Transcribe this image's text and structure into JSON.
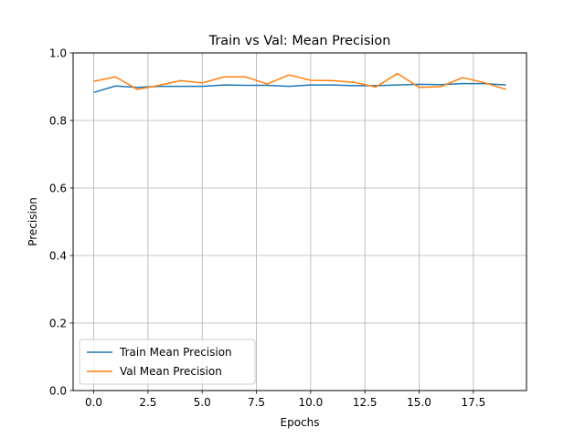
{
  "chart_data": {
    "type": "line",
    "title": "Train vs Val: Mean Precision",
    "xlabel": "Epochs",
    "ylabel": "Precision",
    "xlim": [
      -0.95,
      19.95
    ],
    "ylim": [
      0.0,
      1.0
    ],
    "xticks": [
      0,
      2.5,
      5,
      7.5,
      10,
      12.5,
      15,
      17.5
    ],
    "xtick_labels": [
      "0.0",
      "2.5",
      "5.0",
      "7.5",
      "10.0",
      "12.5",
      "15.0",
      "17.5"
    ],
    "yticks": [
      0.0,
      0.2,
      0.4,
      0.6,
      0.8,
      1.0
    ],
    "ytick_labels": [
      "0.0",
      "0.2",
      "0.4",
      "0.6",
      "0.8",
      "1.0"
    ],
    "grid": true,
    "legend_position": "lower-left",
    "x": [
      0,
      1,
      2,
      3,
      4,
      5,
      6,
      7,
      8,
      9,
      10,
      11,
      12,
      13,
      14,
      15,
      16,
      17,
      18,
      19
    ],
    "series": [
      {
        "name": "Train Mean Precision",
        "color": "#1f77b4",
        "values": [
          0.883,
          0.902,
          0.898,
          0.901,
          0.901,
          0.901,
          0.905,
          0.904,
          0.904,
          0.901,
          0.905,
          0.905,
          0.903,
          0.903,
          0.905,
          0.907,
          0.906,
          0.909,
          0.909,
          0.905
        ]
      },
      {
        "name": "Val Mean Precision",
        "color": "#ff7f0e",
        "values": [
          0.916,
          0.929,
          0.892,
          0.904,
          0.918,
          0.911,
          0.929,
          0.929,
          0.908,
          0.935,
          0.919,
          0.918,
          0.913,
          0.899,
          0.939,
          0.898,
          0.9,
          0.927,
          0.912,
          0.892
        ]
      }
    ]
  }
}
